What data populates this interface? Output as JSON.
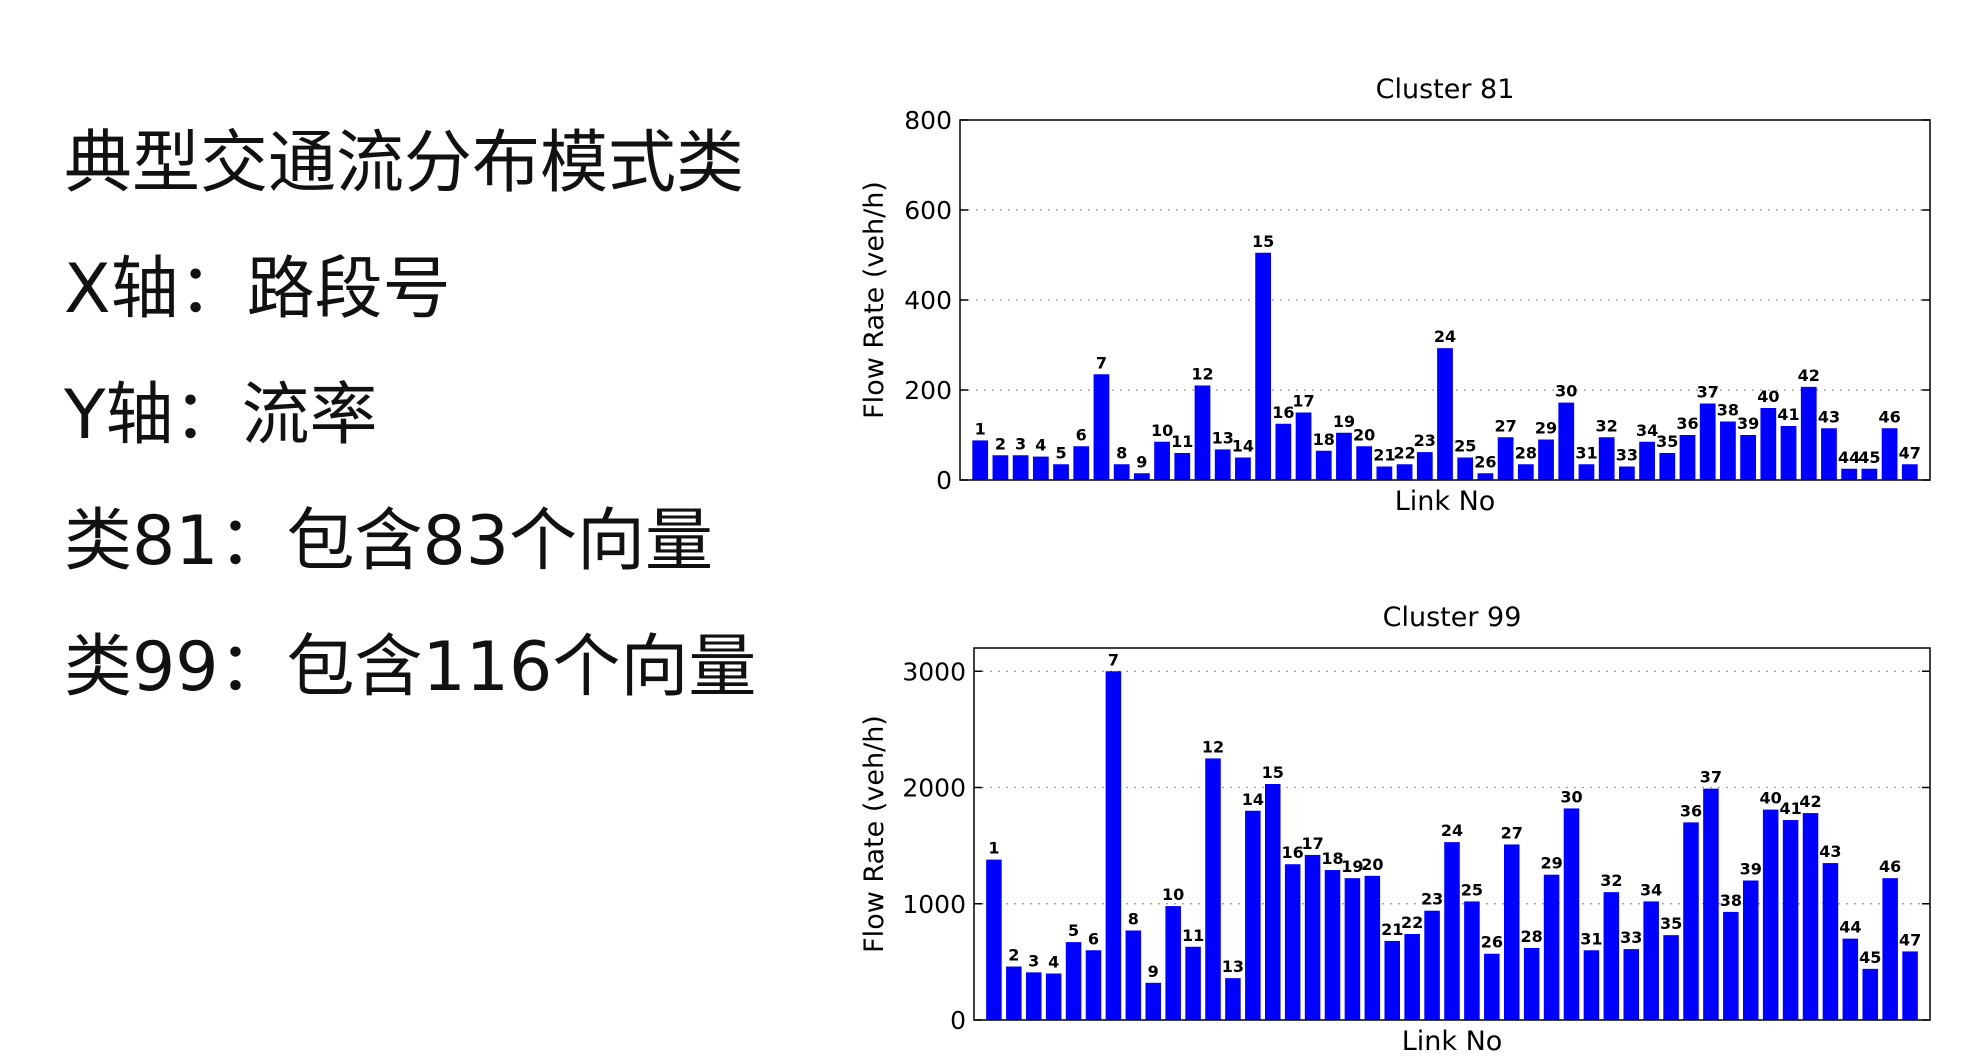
{
  "text_lines": [
    "典型交通流分布模式类",
    "X轴：路段号",
    "Y轴：流率",
    "类81：包含83个向量",
    "类99：包含116个向量"
  ],
  "chart_data": [
    {
      "type": "bar",
      "title": "Cluster 81",
      "xlabel": "Link No",
      "ylabel": "Flow Rate (veh/h)",
      "ylim": [
        0,
        800
      ],
      "yticks": [
        0,
        200,
        400,
        600,
        800
      ],
      "grid": true,
      "categories": [
        "1",
        "2",
        "3",
        "4",
        "5",
        "6",
        "7",
        "8",
        "9",
        "10",
        "11",
        "12",
        "13",
        "14",
        "15",
        "16",
        "17",
        "18",
        "19",
        "20",
        "21",
        "22",
        "23",
        "24",
        "25",
        "26",
        "27",
        "28",
        "29",
        "30",
        "31",
        "32",
        "33",
        "34",
        "35",
        "36",
        "37",
        "38",
        "39",
        "40",
        "41",
        "42",
        "43",
        "44",
        "45",
        "46",
        "47"
      ],
      "values": [
        88,
        55,
        55,
        52,
        35,
        75,
        235,
        35,
        15,
        85,
        60,
        210,
        68,
        50,
        505,
        125,
        150,
        65,
        105,
        75,
        30,
        35,
        62,
        293,
        50,
        15,
        95,
        35,
        90,
        172,
        35,
        95,
        30,
        85,
        60,
        100,
        170,
        130,
        100,
        160,
        120,
        207,
        115,
        25,
        25,
        115,
        35
      ],
      "bar_color": "#0000ff"
    },
    {
      "type": "bar",
      "title": "Cluster 99",
      "xlabel": "Link No",
      "ylabel": "Flow Rate (veh/h)",
      "ylim": [
        0,
        3200
      ],
      "yticks": [
        0,
        1000,
        2000,
        3000
      ],
      "grid": true,
      "categories": [
        "1",
        "2",
        "3",
        "4",
        "5",
        "6",
        "7",
        "8",
        "9",
        "10",
        "11",
        "12",
        "13",
        "14",
        "15",
        "16",
        "17",
        "18",
        "19",
        "20",
        "21",
        "22",
        "23",
        "24",
        "25",
        "26",
        "27",
        "28",
        "29",
        "30",
        "31",
        "32",
        "33",
        "34",
        "35",
        "36",
        "37",
        "38",
        "39",
        "40",
        "41",
        "42",
        "43",
        "44",
        "45",
        "46",
        "47"
      ],
      "values": [
        1380,
        460,
        410,
        400,
        670,
        600,
        3000,
        770,
        320,
        980,
        630,
        2250,
        360,
        1800,
        2030,
        1340,
        1420,
        1290,
        1220,
        1240,
        680,
        740,
        940,
        1530,
        1020,
        570,
        1510,
        620,
        1250,
        1820,
        600,
        1100,
        610,
        1020,
        730,
        1700,
        1990,
        930,
        1200,
        1810,
        1720,
        1780,
        1350,
        700,
        440,
        1220,
        590
      ],
      "bar_color": "#0000ff"
    }
  ]
}
